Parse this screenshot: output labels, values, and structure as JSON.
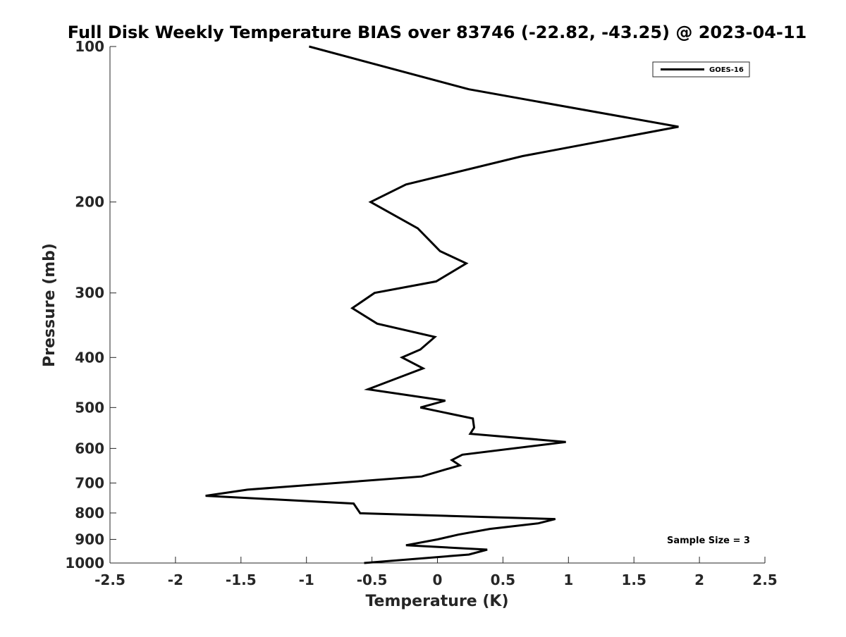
{
  "chart_data": {
    "type": "line",
    "title": "Full Disk Weekly Temperature BIAS over 83746 (-22.82, -43.25) @ 2023-04-11",
    "xlabel": "Temperature (K)",
    "ylabel": "Pressure (mb)",
    "xlim": [
      -2.5,
      2.5
    ],
    "ylim": [
      100,
      1000
    ],
    "y_scale": "log",
    "y_reversed": true,
    "x_ticks": [
      "-2.5",
      "-2",
      "-1.5",
      "-1",
      "-0.5",
      "0",
      "0.5",
      "1",
      "1.5",
      "2",
      "2.5"
    ],
    "x_tick_values": [
      -2.5,
      -2,
      -1.5,
      -1,
      -0.5,
      0,
      0.5,
      1,
      1.5,
      2,
      2.5
    ],
    "y_ticks": [
      "100",
      "200",
      "300",
      "400",
      "500",
      "600",
      "700",
      "800",
      "900",
      "1000"
    ],
    "y_tick_values": [
      100,
      200,
      300,
      400,
      500,
      600,
      700,
      800,
      900,
      1000
    ],
    "grid": false,
    "legend_position": "top-right",
    "series": [
      {
        "name": "GOES-16",
        "color": "#000000",
        "points": [
          {
            "x": -0.98,
            "y": 100
          },
          {
            "x": 0.24,
            "y": 121
          },
          {
            "x": 1.84,
            "y": 143
          },
          {
            "x": 0.65,
            "y": 163
          },
          {
            "x": -0.24,
            "y": 185
          },
          {
            "x": -0.51,
            "y": 200
          },
          {
            "x": -0.15,
            "y": 225
          },
          {
            "x": 0.02,
            "y": 249
          },
          {
            "x": 0.22,
            "y": 263
          },
          {
            "x": -0.01,
            "y": 285
          },
          {
            "x": -0.48,
            "y": 300
          },
          {
            "x": -0.65,
            "y": 321
          },
          {
            "x": -0.46,
            "y": 344
          },
          {
            "x": -0.02,
            "y": 365
          },
          {
            "x": -0.13,
            "y": 386
          },
          {
            "x": -0.27,
            "y": 400
          },
          {
            "x": -0.11,
            "y": 420
          },
          {
            "x": -0.29,
            "y": 437
          },
          {
            "x": -0.53,
            "y": 461
          },
          {
            "x": 0.06,
            "y": 485
          },
          {
            "x": -0.13,
            "y": 500
          },
          {
            "x": 0.27,
            "y": 525
          },
          {
            "x": 0.28,
            "y": 547
          },
          {
            "x": 0.25,
            "y": 562
          },
          {
            "x": 0.98,
            "y": 583
          },
          {
            "x": 0.19,
            "y": 617
          },
          {
            "x": 0.11,
            "y": 632
          },
          {
            "x": 0.17,
            "y": 647
          },
          {
            "x": -0.12,
            "y": 680
          },
          {
            "x": -1.45,
            "y": 721
          },
          {
            "x": -1.77,
            "y": 741
          },
          {
            "x": -0.64,
            "y": 767
          },
          {
            "x": -0.59,
            "y": 801
          },
          {
            "x": 0.9,
            "y": 822
          },
          {
            "x": 0.77,
            "y": 838
          },
          {
            "x": 0.4,
            "y": 859
          },
          {
            "x": 0.16,
            "y": 881
          },
          {
            "x": 0.0,
            "y": 900
          },
          {
            "x": -0.24,
            "y": 924
          },
          {
            "x": 0.38,
            "y": 942
          },
          {
            "x": 0.24,
            "y": 963
          },
          {
            "x": -0.56,
            "y": 1000
          }
        ]
      }
    ],
    "annotations": [
      {
        "text": "Sample Size = 3"
      }
    ]
  }
}
